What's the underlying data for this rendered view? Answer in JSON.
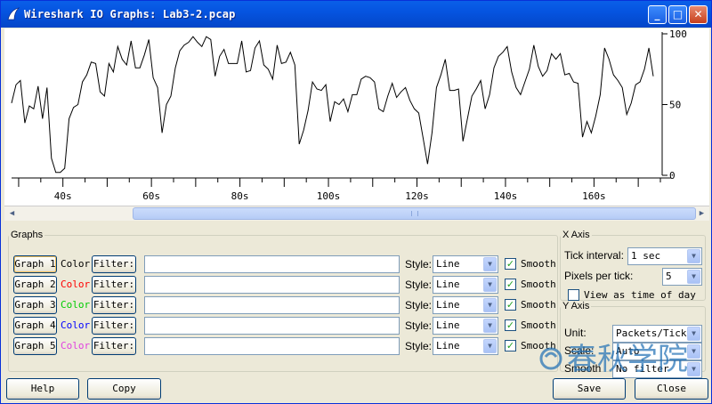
{
  "window": {
    "title": "Wireshark IO Graphs: Lab3-2.pcap",
    "minimize_glyph": "_",
    "maximize_glyph": "□",
    "close_glyph": "✕"
  },
  "chart_data": {
    "type": "line",
    "title": "",
    "xlabel": "",
    "ylabel": "",
    "x_tick_labels": [
      "40s",
      "60s",
      "80s",
      "100s",
      "120s",
      "140s",
      "160s"
    ],
    "x_tick_values": [
      40,
      60,
      80,
      100,
      120,
      140,
      160
    ],
    "y_tick_labels": [
      "100",
      "50",
      "0"
    ],
    "y_tick_values": [
      100,
      50,
      0
    ],
    "xlim": [
      28.4,
      175
    ],
    "ylim": [
      0,
      100
    ],
    "x_start": 28.4,
    "x_step": 1,
    "series": [
      {
        "color": "#000000",
        "values": [
          51,
          64,
          67,
          37,
          49,
          47,
          63,
          40,
          62,
          12,
          2,
          2,
          5,
          40,
          48,
          50,
          66,
          71,
          80,
          79,
          59,
          56,
          79,
          73,
          91,
          82,
          78,
          95,
          76,
          76,
          85,
          96,
          69,
          62,
          30,
          50,
          56,
          76,
          88,
          92,
          94,
          98,
          94,
          91,
          98,
          96,
          70,
          84,
          89,
          79,
          79,
          79,
          95,
          73,
          74,
          90,
          95,
          78,
          75,
          68,
          92,
          79,
          80,
          87,
          78,
          22,
          32,
          46,
          66,
          61,
          60,
          64,
          38,
          52,
          50,
          54,
          45,
          57,
          57,
          68,
          70,
          69,
          66,
          47,
          45,
          56,
          65,
          55,
          59,
          62,
          53,
          47,
          44,
          26,
          8,
          30,
          62,
          71,
          82,
          60,
          60,
          61,
          24,
          40,
          56,
          61,
          67,
          47,
          57,
          76,
          84,
          87,
          91,
          73,
          62,
          57,
          66,
          75,
          92,
          77,
          70,
          74,
          86,
          82,
          86,
          71,
          72,
          66,
          65,
          27,
          38,
          30,
          42,
          57,
          90,
          82,
          71,
          67,
          62,
          43,
          51,
          64,
          66,
          75,
          90,
          70
        ]
      }
    ],
    "grid": false
  },
  "scroll": {
    "left_arrow": "◀",
    "right_arrow": "▶"
  },
  "graphs": {
    "legend": "Graphs",
    "rows": [
      {
        "graph_label": "Graph 1",
        "color_label": "Color",
        "color": "#000000",
        "filter_label": "Filter:",
        "filter_value": "",
        "style_label": "Style:",
        "style_value": "Line",
        "smooth_label": "Smooth",
        "pressed": true
      },
      {
        "graph_label": "Graph 2",
        "color_label": "Color",
        "color": "#ff0000",
        "filter_label": "Filter:",
        "filter_value": "",
        "style_label": "Style:",
        "style_value": "Line",
        "smooth_label": "Smooth",
        "pressed": false
      },
      {
        "graph_label": "Graph 3",
        "color_label": "Color",
        "color": "#00cc00",
        "filter_label": "Filter:",
        "filter_value": "",
        "style_label": "Style:",
        "style_value": "Line",
        "smooth_label": "Smooth",
        "pressed": false
      },
      {
        "graph_label": "Graph 4",
        "color_label": "Color",
        "color": "#0000ff",
        "filter_label": "Filter:",
        "filter_value": "",
        "style_label": "Style:",
        "style_value": "Line",
        "smooth_label": "Smooth",
        "pressed": false
      },
      {
        "graph_label": "Graph 5",
        "color_label": "Color",
        "color": "#e040e0",
        "filter_label": "Filter:",
        "filter_value": "",
        "style_label": "Style:",
        "style_value": "Line",
        "smooth_label": "Smooth",
        "pressed": false
      }
    ],
    "check_glyph": "✓"
  },
  "x_axis": {
    "legend": "X Axis",
    "tick_interval_label": "Tick interval:",
    "tick_interval_value": "1 sec",
    "pixels_per_tick_label": "Pixels per tick:",
    "pixels_per_tick_value": "5",
    "view_as_time_label": "View as time of day"
  },
  "y_axis": {
    "legend": "Y Axis",
    "unit_label": "Unit:",
    "unit_value": "Packets/Tick",
    "scale_label": "Scale:",
    "scale_value": "Auto",
    "smooth_label": "Smooth",
    "smooth_value": "No filter"
  },
  "buttons": {
    "help": "Help",
    "copy": "Copy",
    "save": "Save",
    "close": "Close"
  },
  "watermark": {
    "text": "春秋学院"
  },
  "dropdown_glyph": "▼"
}
